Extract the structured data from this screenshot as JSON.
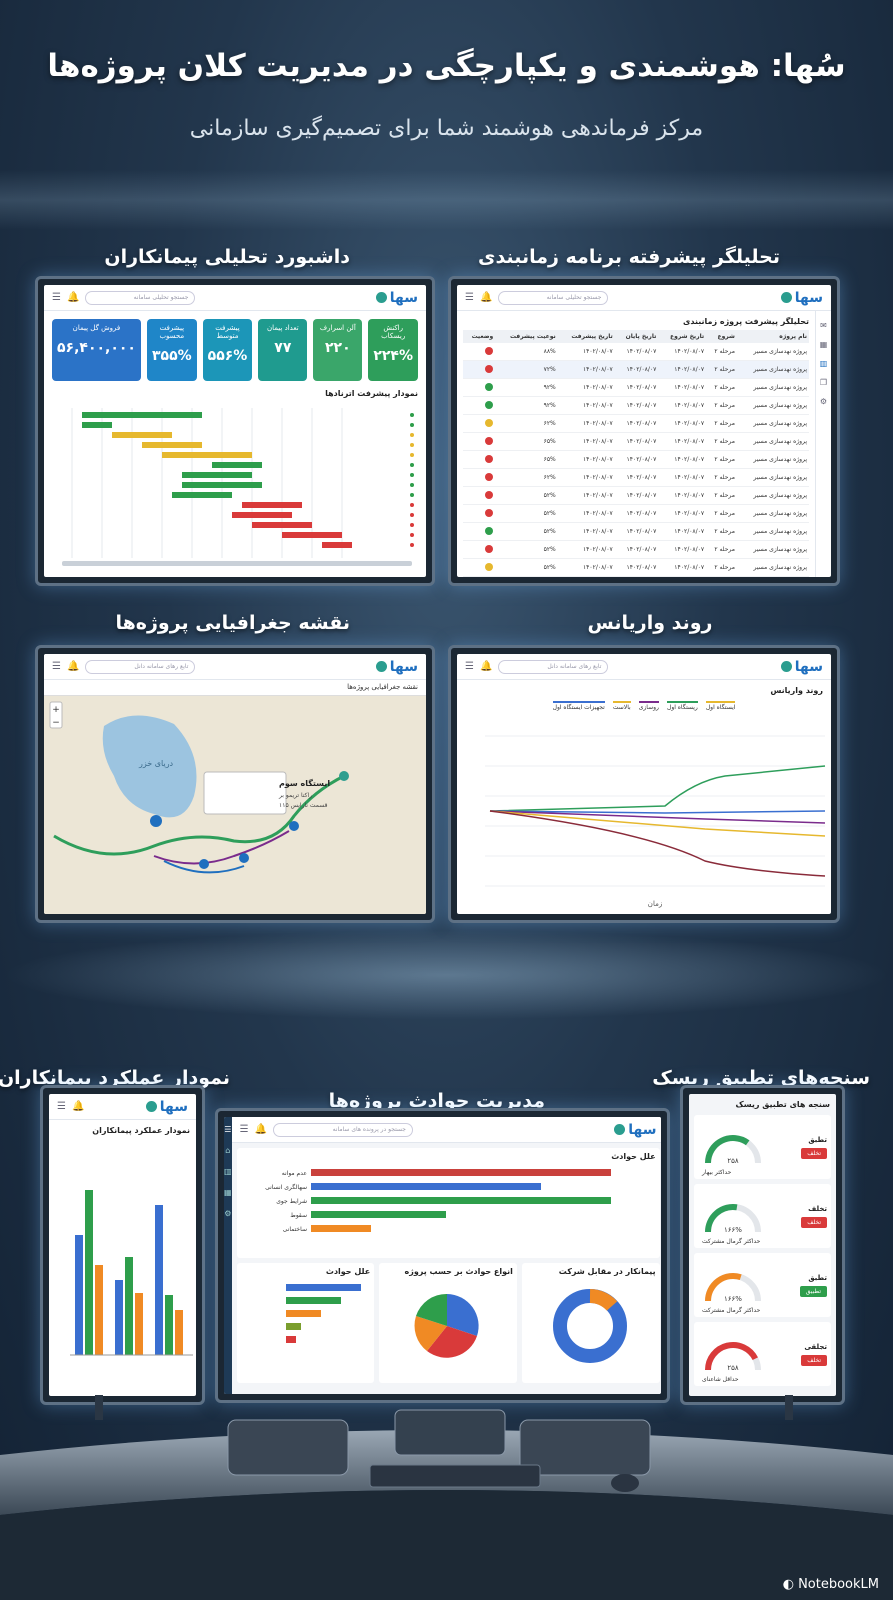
{
  "header": {
    "title": "سُها: هوشمندی و یکپارچگی در مدیریت کلان پروژه‌ها",
    "subtitle": "مرکز فرماندهی هوشمند شما برای تصمیم‌گیری سازمانی"
  },
  "panels": {
    "contractor_dashboard": {
      "title": "داشبورد تحلیلی پیمانکاران",
      "logo": "سها",
      "search_placeholder": "جستجو تحلیلی سامانه",
      "kpis": [
        {
          "label": "راکنش ریسکاب",
          "value": "۲۲۴%",
          "color": "#2e9e5b"
        },
        {
          "label": "آلن اسرارف",
          "value": "۲۲۰",
          "color": "#3aa66a"
        },
        {
          "label": "تعداد پیمان",
          "value": "۷۷",
          "color": "#1f9b8f"
        },
        {
          "label": "پیشرفت متوسط",
          "value": "۵۵۶%",
          "color": "#1c96b8"
        },
        {
          "label": "پیشرفت محسوب",
          "value": "۳۵۵%",
          "color": "#1f86c8"
        },
        {
          "label": "فروش گل پیمان",
          "value": "۵۶,۴۰۰,۰۰۰",
          "color": "#2b73c7"
        }
      ],
      "chart_title": "نمودار پیشرفت اترنادها"
    },
    "schedule_analyzer": {
      "title": "تحلیلگر پیشرفته برنامه زمانبندی",
      "logo": "سها",
      "search_placeholder": "جستجو تحلیلی سامانه",
      "table_title": "تحلیلگر پیشرفت پروژه زمانبندی",
      "columns": [
        "نام پروژه",
        "شروع",
        "تاریخ شروع",
        "تاریخ پایان",
        "تاریخ پیشرفت",
        "نوعیت پیشرفت",
        "وضعیت"
      ],
      "rows": [
        {
          "name": "پروژه نهدسازی مسیر",
          "phase": "مرحله ۲",
          "progress": "۸۸%",
          "status": "#d93a3a"
        },
        {
          "name": "پروژه نهدسازی مسیر",
          "phase": "مرحله ۲",
          "progress": "۷۲%",
          "status": "#d93a3a"
        },
        {
          "name": "پروژه نهدسازی مسیر",
          "phase": "مرحله ۲",
          "progress": "۹۲%",
          "status": "#2e9e4b"
        },
        {
          "name": "پروژه نهدسازی مسیر",
          "phase": "مرحله ۲",
          "progress": "۹۲%",
          "status": "#2e9e4b"
        },
        {
          "name": "پروژه نهدسازی مسیر",
          "phase": "مرحله ۲",
          "progress": "۶۲%",
          "status": "#e6b82e"
        },
        {
          "name": "پروژه نهدسازی مسیر",
          "phase": "مرحله ۲",
          "progress": "۶۵%",
          "status": "#d93a3a"
        },
        {
          "name": "پروژه نهدسازی مسیر",
          "phase": "مرحله ۲",
          "progress": "۶۵%",
          "status": "#d93a3a"
        },
        {
          "name": "پروژه نهدسازی مسیر",
          "phase": "مرحله ۲",
          "progress": "۶۲%",
          "status": "#d93a3a"
        },
        {
          "name": "پروژه نهدسازی مسیر",
          "phase": "مرحله ۲",
          "progress": "۵۲%",
          "status": "#d93a3a"
        },
        {
          "name": "پروژه نهدسازی مسیر",
          "phase": "مرحله ۲",
          "progress": "۵۲%",
          "status": "#d93a3a"
        },
        {
          "name": "پروژه نهدسازی مسیر",
          "phase": "مرحله ۲",
          "progress": "۵۲%",
          "status": "#2e9e4b"
        },
        {
          "name": "پروژه نهدسازی مسیر",
          "phase": "مرحله ۲",
          "progress": "۵۲%",
          "status": "#d93a3a"
        },
        {
          "name": "پروژه نهدسازی مسیر",
          "phase": "مرحله ۲",
          "progress": "۵۲%",
          "status": "#e6b82e"
        }
      ],
      "date": "۱۴۰۲/۰۸/۰۷"
    },
    "geo_map": {
      "title": "نقشه جغرافیایی پروژه‌ها",
      "logo": "سها",
      "search_placeholder": "تابع رهای سامانه دانل",
      "map_title": "نقشه جغرافیایی پروژه‌ها",
      "sea_label": "دریای خزر",
      "popup_title": "ایستگاه سوم",
      "popup_line1": "راکتا تریمو بر",
      "popup_line2": "قسمت نارایس ۱۱۵"
    },
    "variance": {
      "title": "روند واریانس",
      "logo": "سها",
      "search_placeholder": "تابع رهای سامانه دانل",
      "chart_title": "روند واریانس",
      "legend": [
        "ایستگاه اول",
        "ریستگاه اول",
        "روسازی",
        "بالاست",
        "تجهیزات ایستگاه اول"
      ],
      "xlabel": "زمان"
    },
    "contractor_performance": {
      "title": "نمودار عملکرد پیمانکاران",
      "logo": "سها",
      "chart_title": "نمودار عملکرد پیمانکاران"
    },
    "incidents": {
      "title": "مدیریت حوادث پروژه‌ها",
      "logo": "سها",
      "search_placeholder": "جستجو در پرونده های سامانه",
      "main_chart_title": "علل حوادث",
      "main_bars": [
        "عدم موانه",
        "سهالگری انسانی",
        "شرایط جوی",
        "سقوط",
        "ساختمانی"
      ],
      "sub1_title": "علل حوادث",
      "sub2_title": "انواع حوادث بر حسب پروژه",
      "sub3_title": "پیمانکار در مقابل شرکت"
    },
    "risk": {
      "title": "سنجه‌های تطبیق ریسک",
      "header": "سنجه های تطبیق ریسک",
      "gauges": [
        {
          "value": "۲۵۸",
          "label": "حداکثر بیهار",
          "tag1": "تطبق",
          "tag2": "تخلف",
          "gauge_color": "#2e9e5b",
          "level": 0.7,
          "tag_color": "#d93a3a"
        },
        {
          "value": "۱۶۶%",
          "label": "حداکثر گرمال مشترکت",
          "tag1": "تخلف",
          "tag2": "تخلف",
          "gauge_color": "#2e9e5b",
          "level": 0.55,
          "tag_color": "#d93a3a"
        },
        {
          "value": "۱۶۶%",
          "label": "حداکثر گرمال مشترکت",
          "tag1": "تطبق",
          "tag2": "تطبیق",
          "gauge_color": "#f08a24",
          "level": 0.6,
          "tag_color": "#2e9e4b"
        },
        {
          "value": "۲۵۸",
          "label": "حداقل شاعنای",
          "tag1": "تجلقی",
          "tag2": "تخلف",
          "gauge_color": "#d93a3a",
          "level": 0.85,
          "tag_color": "#d93a3a"
        }
      ]
    }
  },
  "footer": {
    "brand": "NotebookLM"
  }
}
